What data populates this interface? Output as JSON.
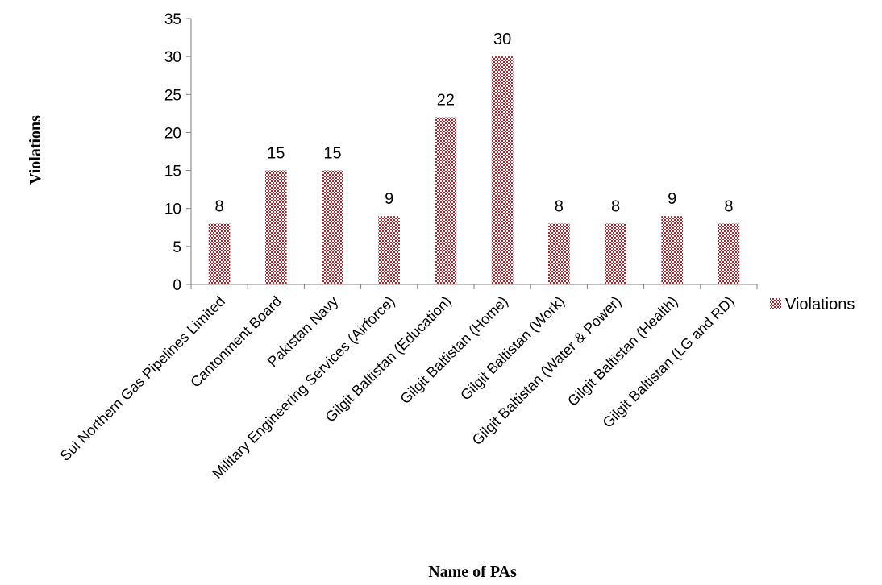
{
  "colors": {
    "bar": "#a0282d",
    "axis": "#7f7f7f"
  },
  "chart_data": {
    "type": "bar",
    "xlabel": "Name of PAs",
    "ylabel": "Violations",
    "ylim": [
      0,
      35
    ],
    "yticks": [
      0,
      5,
      10,
      15,
      20,
      25,
      30,
      35
    ],
    "grid": false,
    "legend": "right",
    "categories": [
      "Sui Northern Gas Pipelines Limited",
      "Cantonment Board",
      "Pakistan Navy",
      "Military Engineering Services (Airforce)",
      "Gilgit Baltistan (Education)",
      "Gilgit Baltistan (Home)",
      "Gilgit Baltistan (Work)",
      "Gilgit Baltistan (Water & Power)",
      "Gilgit Baltistan (Health)",
      "Gilgit Baltistan (LG and RD)"
    ],
    "series": [
      {
        "name": "Violations",
        "values": [
          8,
          15,
          15,
          9,
          22,
          30,
          8,
          8,
          9,
          8
        ]
      }
    ]
  }
}
